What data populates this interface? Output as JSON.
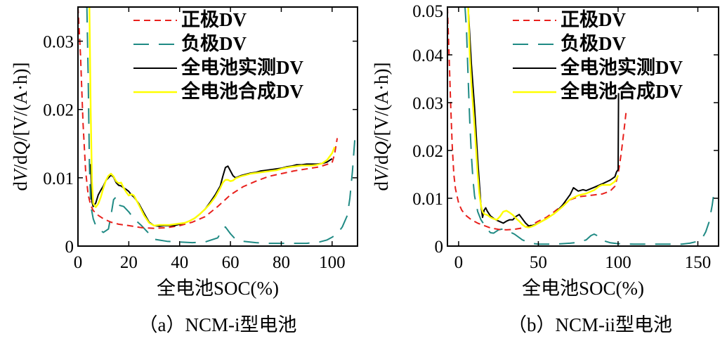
{
  "colors": {
    "positive": "#e8201c",
    "negative": "#1f8a84",
    "measured": "#000000",
    "synthesized": "#ffff00"
  },
  "chart_data": [
    {
      "type": "line",
      "caption": "（a）NCM-i型电池",
      "xlabel": "全电池SOC(%)",
      "ylabel_parts": [
        "d",
        "V",
        "/d",
        "Q",
        "/[V/(A·h)]"
      ],
      "xlim": [
        0,
        110
      ],
      "ylim": [
        0,
        0.035
      ],
      "xticks": [
        0,
        20,
        40,
        60,
        80,
        100
      ],
      "xtick_labels": [
        "0",
        "20",
        "40",
        "60",
        "80",
        "100"
      ],
      "yticks": [
        0,
        0.01,
        0.02,
        0.03
      ],
      "ytick_labels": [
        "0",
        "0.01",
        "0.02",
        "0.03"
      ],
      "legend_position": "top-right",
      "series": [
        {
          "name": "正极DV",
          "style": "dashed",
          "x": [
            0,
            1,
            2,
            3,
            4,
            5,
            6,
            8,
            10,
            13,
            16,
            20,
            25,
            30,
            35,
            40,
            45,
            50,
            55,
            60,
            65,
            70,
            75,
            80,
            85,
            90,
            95,
            100,
            101,
            102
          ],
          "y": [
            0.035,
            0.028,
            0.018,
            0.011,
            0.0075,
            0.006,
            0.0052,
            0.0045,
            0.004,
            0.0035,
            0.0032,
            0.003,
            0.0027,
            0.0026,
            0.0027,
            0.003,
            0.0035,
            0.0043,
            0.0058,
            0.0075,
            0.0087,
            0.0095,
            0.0102,
            0.0106,
            0.011,
            0.0113,
            0.0116,
            0.0122,
            0.0135,
            0.0158
          ]
        },
        {
          "name": "负极DV",
          "style": "longdash",
          "x": [
            3.5,
            4,
            4.5,
            5,
            6,
            7,
            8,
            10,
            12,
            13,
            14,
            15,
            16,
            18,
            20,
            22,
            25,
            28,
            30,
            35,
            40,
            45,
            50,
            55,
            57,
            58,
            60,
            62,
            65,
            70,
            75,
            80,
            85,
            90,
            95,
            98,
            100,
            102,
            104,
            106,
            107,
            108,
            109
          ],
          "y": [
            0.035,
            0.025,
            0.012,
            0.006,
            0.004,
            0.003,
            0.0025,
            0.002,
            0.0025,
            0.0045,
            0.0068,
            0.0072,
            0.006,
            0.0058,
            0.005,
            0.004,
            0.003,
            0.0018,
            0.001,
            0.0007,
            0.0006,
            0.0005,
            0.0006,
            0.0012,
            0.0025,
            0.0028,
            0.0018,
            0.001,
            0.0007,
            0.0005,
            0.0004,
            0.0004,
            0.0004,
            0.0004,
            0.0006,
            0.0009,
            0.0013,
            0.0018,
            0.0028,
            0.0045,
            0.007,
            0.011,
            0.016
          ]
        },
        {
          "name": "全电池实测DV",
          "style": "solid",
          "x": [
            5,
            5.5,
            6,
            7,
            8,
            9,
            10,
            11,
            12,
            13,
            14,
            15,
            16,
            17,
            18,
            19,
            20,
            21,
            22,
            24,
            26,
            28,
            30,
            32,
            34,
            36,
            38,
            40,
            42,
            44,
            46,
            48,
            50,
            52,
            54,
            56,
            57,
            58,
            59,
            60,
            61,
            62,
            64,
            66,
            68,
            70,
            72,
            74,
            76,
            78,
            80,
            82,
            84,
            86,
            88,
            90,
            92,
            94,
            96,
            98,
            100
          ],
          "y": [
            0.012,
            0.0065,
            0.0058,
            0.0063,
            0.0075,
            0.0082,
            0.0088,
            0.0096,
            0.01,
            0.0104,
            0.0101,
            0.0093,
            0.0089,
            0.0088,
            0.0085,
            0.0083,
            0.008,
            0.0075,
            0.0072,
            0.0062,
            0.0048,
            0.0035,
            0.003,
            0.0029,
            0.003,
            0.003,
            0.003,
            0.0032,
            0.0034,
            0.0037,
            0.0041,
            0.0047,
            0.0054,
            0.0064,
            0.0075,
            0.0088,
            0.0102,
            0.0115,
            0.0117,
            0.011,
            0.0103,
            0.01,
            0.0103,
            0.0105,
            0.0107,
            0.0108,
            0.011,
            0.0111,
            0.0112,
            0.0113,
            0.0114,
            0.0116,
            0.0117,
            0.0119,
            0.0119,
            0.012,
            0.012,
            0.012,
            0.0121,
            0.0123,
            0.0128
          ]
        },
        {
          "name": "全电池合成DV",
          "style": "solid",
          "x": [
            4.5,
            5,
            5.5,
            6,
            7,
            8,
            9,
            10,
            11,
            12,
            13,
            14,
            15,
            16,
            17,
            18,
            19,
            20,
            21,
            22,
            24,
            26,
            28,
            30,
            32,
            34,
            36,
            38,
            40,
            42,
            44,
            46,
            48,
            50,
            52,
            54,
            56,
            57,
            58,
            59,
            60,
            61,
            62,
            64,
            66,
            68,
            70,
            72,
            74,
            76,
            78,
            80,
            82,
            84,
            86,
            88,
            90,
            92,
            94,
            96,
            98,
            100,
            101
          ],
          "y": [
            0.035,
            0.02,
            0.0095,
            0.0062,
            0.0057,
            0.0062,
            0.0072,
            0.0085,
            0.0096,
            0.0103,
            0.0106,
            0.0102,
            0.0095,
            0.0092,
            0.0093,
            0.0085,
            0.0079,
            0.0074,
            0.0076,
            0.0074,
            0.006,
            0.0045,
            0.0034,
            0.003,
            0.0031,
            0.0031,
            0.0031,
            0.0032,
            0.0033,
            0.0034,
            0.0037,
            0.0041,
            0.0047,
            0.0054,
            0.0062,
            0.0072,
            0.0085,
            0.0093,
            0.0097,
            0.0097,
            0.0095,
            0.0096,
            0.0099,
            0.0102,
            0.0104,
            0.0106,
            0.0107,
            0.0108,
            0.0109,
            0.011,
            0.0111,
            0.0113,
            0.0115,
            0.0116,
            0.0117,
            0.0118,
            0.0118,
            0.0118,
            0.0119,
            0.0121,
            0.0126,
            0.0136,
            0.0145
          ]
        }
      ]
    },
    {
      "type": "line",
      "caption": "（b）NCM-ii型电池",
      "xlabel": "全电池SOC(%)",
      "ylabel_parts": [
        "d",
        "V",
        "/d",
        "Q",
        "/[V/(A·h)]"
      ],
      "xlim": [
        -7,
        163
      ],
      "ylim": [
        0,
        0.05
      ],
      "xticks": [
        0,
        50,
        100,
        150
      ],
      "xtick_labels": [
        "0",
        "50",
        "100",
        "150"
      ],
      "yticks": [
        0,
        0.01,
        0.02,
        0.03,
        0.04,
        0.05
      ],
      "ytick_labels": [
        "0",
        "0.01",
        "0.02",
        "0.03",
        "0.04",
        "0.05"
      ],
      "legend_position": "top-right",
      "series": [
        {
          "name": "正极DV",
          "style": "dashed",
          "x": [
            -7,
            -6,
            -5,
            -4,
            -3,
            -2,
            0,
            2,
            5,
            8,
            12,
            16,
            20,
            25,
            30,
            35,
            40,
            45,
            50,
            55,
            60,
            65,
            70,
            75,
            80,
            85,
            90,
            95,
            98,
            100,
            102,
            104,
            105
          ],
          "y": [
            0.05,
            0.04,
            0.03,
            0.021,
            0.015,
            0.012,
            0.009,
            0.0075,
            0.0063,
            0.0055,
            0.0048,
            0.0043,
            0.0038,
            0.0035,
            0.0034,
            0.0035,
            0.0038,
            0.0043,
            0.0052,
            0.006,
            0.0072,
            0.0085,
            0.0097,
            0.0103,
            0.0105,
            0.0107,
            0.0109,
            0.0115,
            0.0125,
            0.015,
            0.0195,
            0.025,
            0.028
          ]
        },
        {
          "name": "负极DV",
          "style": "longdash",
          "x": [
            4,
            5,
            6,
            7,
            8,
            9,
            10,
            12,
            14,
            16,
            18,
            20,
            22,
            25,
            28,
            30,
            35,
            40,
            45,
            50,
            55,
            60,
            65,
            70,
            75,
            80,
            83,
            85,
            88,
            90,
            95,
            100,
            110,
            120,
            130,
            140,
            145,
            150,
            153,
            155,
            157,
            159,
            160
          ],
          "y": [
            0.05,
            0.045,
            0.035,
            0.026,
            0.019,
            0.014,
            0.0105,
            0.0072,
            0.0055,
            0.0045,
            0.0035,
            0.0028,
            0.0027,
            0.0034,
            0.0036,
            0.0033,
            0.0025,
            0.0013,
            0.0006,
            0.0004,
            0.0004,
            0.0004,
            0.0005,
            0.0006,
            0.0008,
            0.0013,
            0.0022,
            0.0025,
            0.002,
            0.0012,
            0.0007,
            0.0005,
            0.0004,
            0.0004,
            0.0004,
            0.0004,
            0.0006,
            0.001,
            0.0018,
            0.003,
            0.005,
            0.0085,
            0.011
          ]
        },
        {
          "name": "全电池实测DV",
          "style": "solid",
          "x": [
            6,
            8,
            10,
            12,
            14,
            15,
            16,
            17,
            18,
            20,
            22,
            24,
            26,
            28,
            30,
            32,
            34,
            36,
            38,
            40,
            42,
            44,
            46,
            48,
            50,
            55,
            60,
            65,
            70,
            72,
            75,
            78,
            80,
            85,
            90,
            95,
            98,
            99,
            100,
            100.3
          ],
          "y": [
            0.05,
            0.038,
            0.029,
            0.018,
            0.0085,
            0.006,
            0.0075,
            0.008,
            0.0073,
            0.0063,
            0.0058,
            0.0054,
            0.0051,
            0.0048,
            0.0052,
            0.0055,
            0.0055,
            0.0062,
            0.0066,
            0.0057,
            0.0048,
            0.0042,
            0.0043,
            0.0045,
            0.0048,
            0.0057,
            0.0068,
            0.0085,
            0.0108,
            0.0122,
            0.0115,
            0.0118,
            0.0116,
            0.0123,
            0.013,
            0.0138,
            0.0145,
            0.0155,
            0.016,
            0.032
          ]
        },
        {
          "name": "全电池合成DV",
          "style": "solid",
          "x": [
            6,
            7,
            8,
            10,
            12,
            13,
            14,
            15,
            16,
            18,
            20,
            22,
            24,
            26,
            28,
            30,
            32,
            34,
            36,
            38,
            40,
            42,
            44,
            46,
            48,
            50,
            55,
            60,
            65,
            70,
            75,
            80,
            85,
            88,
            90,
            95,
            98,
            100
          ],
          "y": [
            0.05,
            0.04,
            0.034,
            0.025,
            0.015,
            0.011,
            0.0085,
            0.0072,
            0.0067,
            0.0065,
            0.006,
            0.0057,
            0.0055,
            0.0062,
            0.0072,
            0.0074,
            0.007,
            0.0065,
            0.0058,
            0.0052,
            0.0045,
            0.004,
            0.0039,
            0.0041,
            0.0044,
            0.0048,
            0.0057,
            0.0068,
            0.0082,
            0.0098,
            0.0106,
            0.011,
            0.0117,
            0.0125,
            0.0128,
            0.0128,
            0.0135,
            0.0148
          ]
        }
      ]
    }
  ]
}
